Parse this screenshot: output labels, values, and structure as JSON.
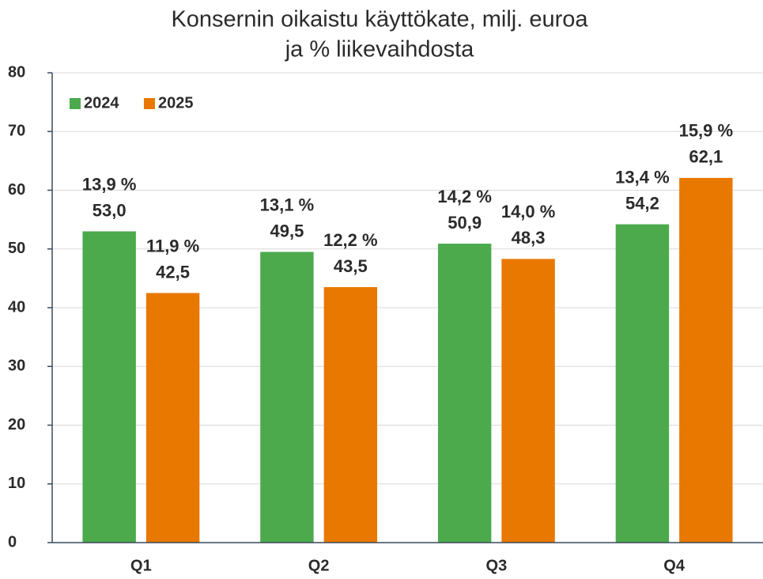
{
  "chart_data": {
    "type": "bar",
    "title": [
      "Konsernin oikaistu käyttökate, milj. euroa",
      "ja % liikevaihdosta"
    ],
    "categories": [
      "Q1",
      "Q2",
      "Q3",
      "Q4"
    ],
    "series": [
      {
        "name": "2024",
        "color": "#4caa4c",
        "values": [
          53.0,
          49.5,
          50.9,
          54.2
        ],
        "value_labels": [
          "53,0",
          "49,5",
          "50,9",
          "54,2"
        ],
        "share_labels": [
          "13,9 %",
          "13,1 %",
          "14,2 %",
          "13,4 %"
        ]
      },
      {
        "name": "2025",
        "color": "#e87800",
        "values": [
          42.5,
          43.5,
          48.3,
          62.1
        ],
        "value_labels": [
          "42,5",
          "43,5",
          "48,3",
          "62,1"
        ],
        "share_labels": [
          "11,9 %",
          "12,2 %",
          "14,0 %",
          "15,9 %"
        ]
      }
    ],
    "ylim": [
      0,
      80
    ],
    "yticks": [
      0,
      10,
      20,
      30,
      40,
      50,
      60,
      70,
      80
    ],
    "grid": true,
    "legend": "top-left"
  }
}
